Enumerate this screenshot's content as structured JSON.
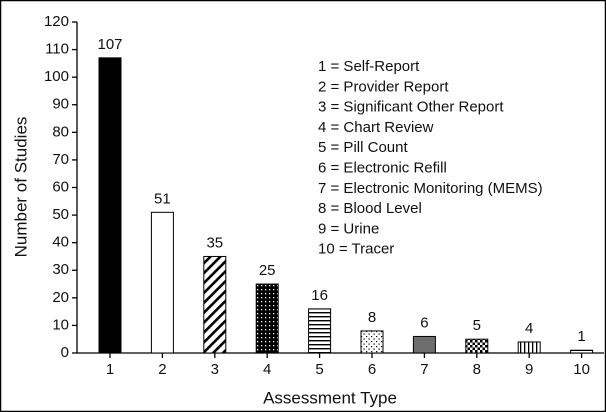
{
  "chart_data": {
    "type": "bar",
    "x_label": "Assessment Type",
    "y_label": "Number of Studies",
    "categories": [
      "1",
      "2",
      "3",
      "4",
      "5",
      "6",
      "7",
      "8",
      "9",
      "10"
    ],
    "values": [
      107,
      51,
      35,
      25,
      16,
      8,
      6,
      5,
      4,
      1
    ],
    "fills": [
      "#000000",
      "#ffffff",
      "diagonal",
      "dots-dense",
      "horizontal",
      "dots-sparse",
      "#6e6e6e",
      "checker",
      "vertical",
      "horizontal-fine"
    ],
    "ylim": [
      0,
      120
    ],
    "yticks": [
      0,
      10,
      20,
      30,
      40,
      50,
      60,
      70,
      80,
      90,
      100,
      110,
      120
    ],
    "annotations": [
      "1 = Self-Report",
      "2 = Provider Report",
      "3 = Significant Other Report",
      "4 = Chart Review",
      "5 = Pill Count",
      "6 = Electronic Refill",
      "7 = Electronic Monitoring (MEMS)",
      "8 = Blood Level",
      "9 = Urine",
      "10 = Tracer"
    ]
  }
}
